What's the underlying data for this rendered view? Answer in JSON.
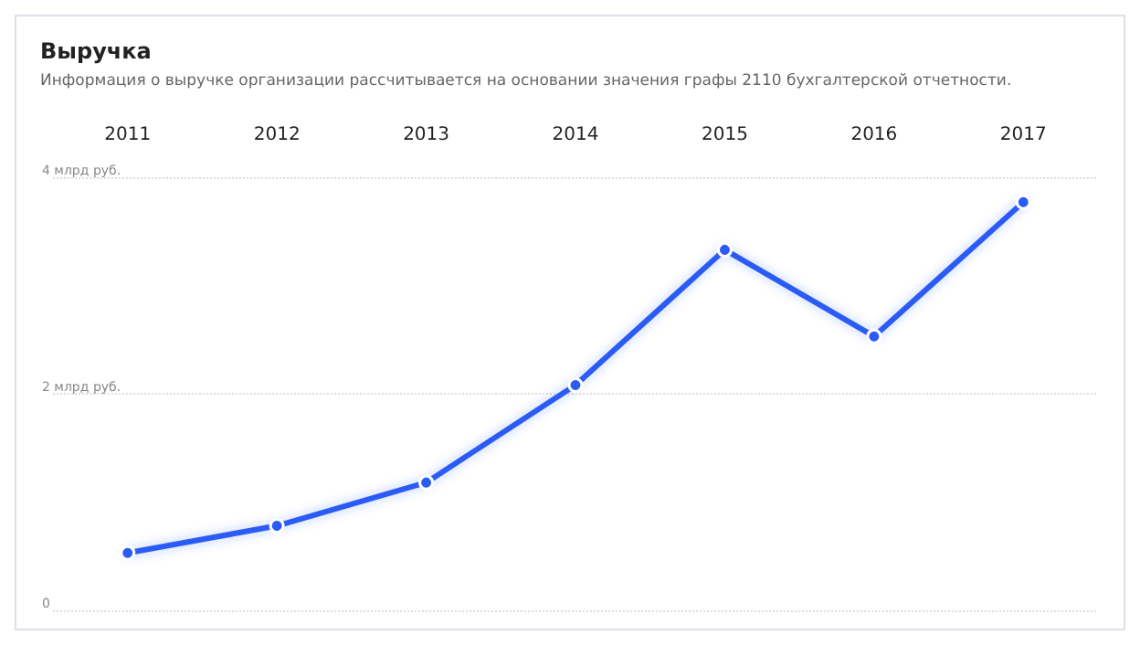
{
  "chart_data": {
    "type": "line",
    "title": "Выручка",
    "subtitle": "Информация о выручке организации рассчитывается на основании значения графы 2110 бухгалтерской отчетности.",
    "categories": [
      "2011",
      "2012",
      "2013",
      "2014",
      "2015",
      "2016",
      "2017"
    ],
    "series": [
      {
        "color": "#2a5cf5",
        "values": [
          0.53,
          0.78,
          1.18,
          2.08,
          3.33,
          2.53,
          3.77
        ]
      }
    ],
    "ylim": [
      0,
      4
    ],
    "yticks": [
      {
        "value": 0,
        "label": "0"
      },
      {
        "value": 2,
        "label": "2 млрд руб."
      },
      {
        "value": 4,
        "label": "4 млрд руб."
      }
    ],
    "grid": "y",
    "marker": "circle",
    "line_style": "solid"
  }
}
